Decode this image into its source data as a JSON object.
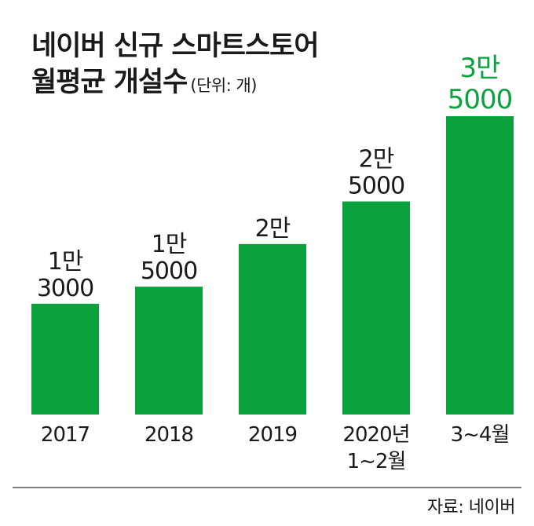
{
  "title_line1": "네이버 신규 스마트스토어",
  "title_line2": "월평균 개설수",
  "unit_label": "(단위: 개)",
  "source": "자료: 네이버",
  "colors": {
    "bar": "#0aa23d",
    "highlight_text": "#0aa23d",
    "text": "#1a1a1a"
  },
  "chart_data": {
    "type": "bar",
    "title": "네이버 신규 스마트스토어 월평균 개설수",
    "unit": "개",
    "categories": [
      [
        "2017"
      ],
      [
        "2018"
      ],
      [
        "2019"
      ],
      [
        "2020년",
        "1~2월"
      ],
      [
        "3~4월"
      ]
    ],
    "values": [
      13000,
      15000,
      20000,
      25000,
      35000
    ],
    "value_labels": [
      [
        "1만",
        "3000"
      ],
      [
        "1만",
        "5000"
      ],
      [
        "2만"
      ],
      [
        "2만",
        "5000"
      ],
      [
        "3만",
        "5000"
      ]
    ],
    "highlight_index": 4,
    "grid": false,
    "legend": "none"
  }
}
